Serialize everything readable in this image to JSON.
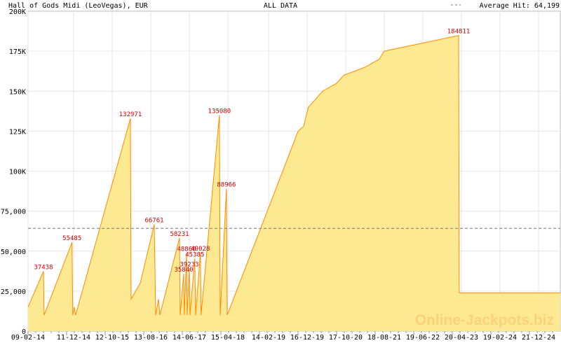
{
  "header": {
    "title": "Hall of Gods Midi (LeoVegas), EUR",
    "center": "ALL DATA",
    "legend": "Average Hit: 64,199"
  },
  "watermark": "Online-Jackpots.biz",
  "colors": {
    "fill": "#fde992",
    "line": "#ff8c00",
    "label": "#cc0000",
    "average": "#777777",
    "grid": "#e6e6e6"
  },
  "chart_data": {
    "type": "area",
    "title": "Hall of Gods Midi (LeoVegas), EUR",
    "subtitle": "ALL DATA",
    "ylim": [
      0,
      200000
    ],
    "grid": true,
    "yticks": [
      {
        "v": 0,
        "l": "0"
      },
      {
        "v": 25000,
        "l": "25,000"
      },
      {
        "v": 50000,
        "l": "50,000"
      },
      {
        "v": 75000,
        "l": "75,000"
      },
      {
        "v": 100000,
        "l": "100K"
      },
      {
        "v": 125000,
        "l": "125K"
      },
      {
        "v": 150000,
        "l": "150K"
      },
      {
        "v": 175000,
        "l": "175K"
      },
      {
        "v": 200000,
        "l": "200K"
      }
    ],
    "xticks": [
      "09-02-14",
      "11-12-14",
      "12-10-15",
      "13-08-16",
      "14-06-17",
      "15-04-18",
      "14-02-19",
      "16-12-19",
      "17-10-20",
      "18-08-21",
      "19-06-22",
      "20-04-23",
      "19-02-24",
      "21-12-24"
    ],
    "average": 64199,
    "series": [
      [
        "2014-02-09",
        15000
      ],
      [
        "2014-06-10",
        37438
      ],
      [
        "2014-06-15",
        10000
      ],
      [
        "2015-01-20",
        55485
      ],
      [
        "2015-01-26",
        10000
      ],
      [
        "2015-02-06",
        15000
      ],
      [
        "2015-02-17",
        10000
      ],
      [
        "2016-04-22",
        132971
      ],
      [
        "2016-04-27",
        20000
      ],
      [
        "2016-07-08",
        30000
      ],
      [
        "2016-10-26",
        66761
      ],
      [
        "2016-11-06",
        10000
      ],
      [
        "2016-11-28",
        20000
      ],
      [
        "2016-12-09",
        10000
      ],
      [
        "2017-05-12",
        58231
      ],
      [
        "2017-05-17",
        10000
      ],
      [
        "2017-06-14",
        35840
      ],
      [
        "2017-06-19",
        10000
      ],
      [
        "2017-07-06",
        48860
      ],
      [
        "2017-07-11",
        10000
      ],
      [
        "2017-07-28",
        39233
      ],
      [
        "2017-08-02",
        10000
      ],
      [
        "2017-09-09",
        45385
      ],
      [
        "2017-09-15",
        10000
      ],
      [
        "2017-10-23",
        49028
      ],
      [
        "2017-10-28",
        10000
      ],
      [
        "2018-03-21",
        135080
      ],
      [
        "2018-03-27",
        10000
      ],
      [
        "2018-05-15",
        88966
      ],
      [
        "2018-05-21",
        10000
      ],
      [
        "2019-11-28",
        125000
      ],
      [
        "2020-01-10",
        128000
      ],
      [
        "2020-02-17",
        140000
      ],
      [
        "2020-04-13",
        145000
      ],
      [
        "2020-06-07",
        150000
      ],
      [
        "2020-09-26",
        155000
      ],
      [
        "2020-11-20",
        160000
      ],
      [
        "2021-05-06",
        165000
      ],
      [
        "2021-08-25",
        170000
      ],
      [
        "2021-10-03",
        175000
      ],
      [
        "2022-07-26",
        180000
      ],
      [
        "2023-05-10",
        184811
      ],
      [
        "2023-05-15",
        24000
      ],
      [
        "2025-07-16",
        24000
      ]
    ],
    "peaks": [
      [
        "2014-06-10",
        37438,
        "37438"
      ],
      [
        "2015-01-20",
        55485,
        "55485"
      ],
      [
        "2016-04-22",
        132971,
        "132971"
      ],
      [
        "2016-10-26",
        66761,
        "66761"
      ],
      [
        "2017-05-12",
        58231,
        "58231"
      ],
      [
        "2017-06-14",
        35840,
        "35840"
      ],
      [
        "2017-07-06",
        48860,
        "48860"
      ],
      [
        "2017-07-28",
        39233,
        "39233"
      ],
      [
        "2017-09-09",
        45385,
        "45385"
      ],
      [
        "2017-10-23",
        49028,
        "49028"
      ],
      [
        "2018-03-21",
        135080,
        "135080"
      ],
      [
        "2018-05-15",
        88966,
        "88966"
      ],
      [
        "2023-05-10",
        184811,
        "184811"
      ]
    ]
  }
}
